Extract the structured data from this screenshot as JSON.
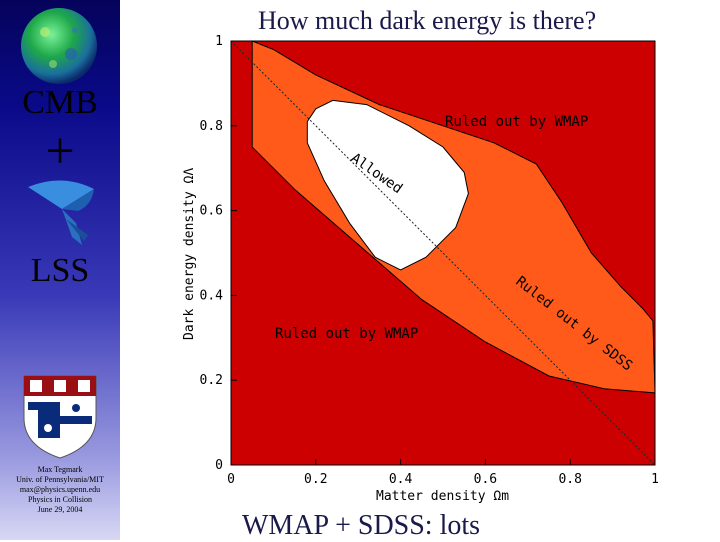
{
  "sidebar": {
    "cmb_label": "CMB",
    "plus": "+",
    "lss_label": "LSS",
    "credits": [
      "Max Tegmark",
      "Univ. of Pennsylvania/MIT",
      "max@physics.upenn.edu",
      "Physics in Collision",
      "June 29, 2004"
    ]
  },
  "slide": {
    "title": "How much dark energy is there?",
    "footer": "WMAP + SDSS: lots"
  },
  "chart_data": {
    "type": "area",
    "xlabel": "Matter density Ωm",
    "ylabel": "Dark energy density ΩΛ",
    "xlim": [
      0,
      1
    ],
    "ylim": [
      0,
      1
    ],
    "xticks": [
      "0",
      "0.2",
      "0.4",
      "0.6",
      "0.8",
      "1"
    ],
    "yticks": [
      "0",
      "0.2",
      "0.4",
      "0.6",
      "0.8",
      "1"
    ],
    "flat_line": [
      [
        0,
        1
      ],
      [
        1,
        0
      ]
    ],
    "wmap_band": [
      [
        0.05,
        1.0
      ],
      [
        0.1,
        0.98
      ],
      [
        0.2,
        0.92
      ],
      [
        0.35,
        0.85
      ],
      [
        0.5,
        0.8
      ],
      [
        0.62,
        0.76
      ],
      [
        0.72,
        0.71
      ],
      [
        0.78,
        0.62
      ],
      [
        0.85,
        0.5
      ],
      [
        0.92,
        0.42
      ],
      [
        0.97,
        0.37
      ],
      [
        0.995,
        0.34
      ],
      [
        1.0,
        0.17
      ],
      [
        0.88,
        0.18
      ],
      [
        0.75,
        0.21
      ],
      [
        0.6,
        0.29
      ],
      [
        0.45,
        0.39
      ],
      [
        0.3,
        0.52
      ],
      [
        0.15,
        0.65
      ],
      [
        0.05,
        0.75
      ],
      [
        0.05,
        1.0
      ]
    ],
    "allowed_region": [
      [
        0.2,
        0.84
      ],
      [
        0.24,
        0.86
      ],
      [
        0.32,
        0.85
      ],
      [
        0.42,
        0.8
      ],
      [
        0.5,
        0.75
      ],
      [
        0.55,
        0.69
      ],
      [
        0.56,
        0.64
      ],
      [
        0.53,
        0.56
      ],
      [
        0.46,
        0.49
      ],
      [
        0.4,
        0.46
      ],
      [
        0.34,
        0.49
      ],
      [
        0.28,
        0.57
      ],
      [
        0.22,
        0.67
      ],
      [
        0.18,
        0.76
      ],
      [
        0.18,
        0.81
      ],
      [
        0.2,
        0.84
      ]
    ],
    "labels": {
      "ruled_out_top": "Ruled out by WMAP",
      "ruled_out_bottom": "Ruled out by WMAP",
      "allowed": "Allowed",
      "sdss": "Ruled out by SDSS"
    },
    "colors": {
      "excluded": "#cc0000",
      "wmap_band": "#ff5a1a",
      "allowed": "#ffffff",
      "frame": "#000000"
    }
  }
}
